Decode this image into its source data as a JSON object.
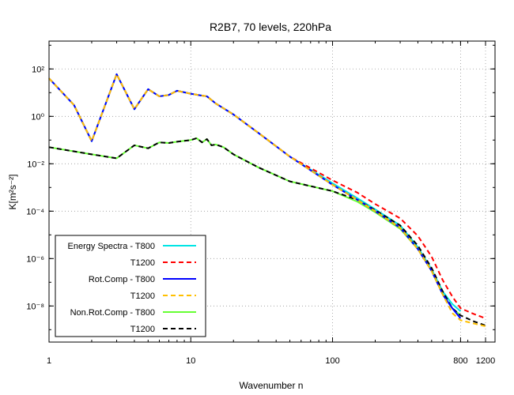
{
  "chart_data": {
    "type": "line",
    "title": "R2B7, 70 levels, 220hPa",
    "xlabel": "Wavenumber n",
    "ylabel": "K[m²s⁻²]",
    "x_scale": "log",
    "y_scale": "log",
    "xlim": [
      1,
      1400
    ],
    "ylim": [
      3e-10,
      1500
    ],
    "x_ticks": [
      1,
      10,
      100,
      800,
      1200
    ],
    "x_tick_labels": [
      "1",
      "10",
      "100",
      "800",
      "1200"
    ],
    "y_ticks": [
      1e-08,
      1e-06,
      0.0001,
      0.01,
      1,
      100
    ],
    "y_tick_labels": [
      "10⁻⁸",
      "10⁻⁶",
      "10⁻⁴",
      "10⁻²",
      "10⁰",
      "10²"
    ],
    "grid": true,
    "legend_position": "bottom-left",
    "series": [
      {
        "name": "Energy Spectra - T800",
        "color": "#00e5e5",
        "dash": "solid",
        "points": [
          [
            1,
            40
          ],
          [
            1.5,
            3
          ],
          [
            2,
            0.09
          ],
          [
            3,
            60
          ],
          [
            4,
            2
          ],
          [
            5,
            14
          ],
          [
            6,
            7
          ],
          [
            7,
            8
          ],
          [
            8,
            12
          ],
          [
            10,
            9
          ],
          [
            12,
            7.5
          ],
          [
            13,
            7
          ],
          [
            15,
            3.5
          ],
          [
            20,
            1.2
          ],
          [
            30,
            0.2
          ],
          [
            50,
            0.02
          ],
          [
            100,
            0.0015
          ],
          [
            150,
            0.00035
          ],
          [
            200,
            0.00012
          ],
          [
            300,
            2.5e-05
          ],
          [
            400,
            3e-06
          ],
          [
            500,
            3.5e-07
          ],
          [
            600,
            4e-08
          ],
          [
            700,
            1.2e-08
          ],
          [
            800,
            6e-09
          ]
        ]
      },
      {
        "name": "T1200",
        "color": "#ff0000",
        "dash": "dashed",
        "points": [
          [
            1,
            40
          ],
          [
            1.5,
            3
          ],
          [
            2,
            0.09
          ],
          [
            3,
            60
          ],
          [
            4,
            2
          ],
          [
            5,
            14
          ],
          [
            6,
            7
          ],
          [
            7,
            8
          ],
          [
            8,
            12
          ],
          [
            10,
            9
          ],
          [
            12,
            7.5
          ],
          [
            13,
            7
          ],
          [
            15,
            3.5
          ],
          [
            20,
            1.2
          ],
          [
            30,
            0.2
          ],
          [
            50,
            0.02
          ],
          [
            100,
            0.002
          ],
          [
            150,
            0.0006
          ],
          [
            200,
            0.0002
          ],
          [
            300,
            5e-05
          ],
          [
            400,
            9e-06
          ],
          [
            500,
            1.2e-06
          ],
          [
            600,
            1.2e-07
          ],
          [
            700,
            2.5e-08
          ],
          [
            800,
            8e-09
          ],
          [
            1000,
            4.5e-09
          ],
          [
            1200,
            3e-09
          ]
        ]
      },
      {
        "name": "Rot.Comp - T800",
        "color": "#0000ff",
        "dash": "solid",
        "points": [
          [
            1,
            40
          ],
          [
            1.5,
            3
          ],
          [
            2,
            0.09
          ],
          [
            3,
            60
          ],
          [
            4,
            2
          ],
          [
            5,
            14
          ],
          [
            6,
            7
          ],
          [
            7,
            8
          ],
          [
            8,
            12
          ],
          [
            10,
            9
          ],
          [
            12,
            7.5
          ],
          [
            13,
            7
          ],
          [
            15,
            3.5
          ],
          [
            20,
            1.2
          ],
          [
            30,
            0.2
          ],
          [
            50,
            0.02
          ],
          [
            100,
            0.0013
          ],
          [
            150,
            0.0003
          ],
          [
            200,
            0.0001
          ],
          [
            300,
            2e-05
          ],
          [
            400,
            2.5e-06
          ],
          [
            500,
            3e-07
          ],
          [
            600,
            3e-08
          ],
          [
            700,
            8e-09
          ],
          [
            800,
            3e-09
          ]
        ]
      },
      {
        "name": "T1200",
        "color": "#ffc000",
        "dash": "dashed",
        "points": [
          [
            1,
            40
          ],
          [
            1.5,
            3
          ],
          [
            2,
            0.09
          ],
          [
            3,
            60
          ],
          [
            4,
            2
          ],
          [
            5,
            14
          ],
          [
            6,
            7
          ],
          [
            7,
            8
          ],
          [
            8,
            12
          ],
          [
            10,
            9
          ],
          [
            12,
            7.5
          ],
          [
            13,
            7
          ],
          [
            15,
            3.5
          ],
          [
            20,
            1.2
          ],
          [
            30,
            0.2
          ],
          [
            50,
            0.02
          ],
          [
            100,
            0.0013
          ],
          [
            150,
            0.0003
          ],
          [
            200,
            0.0001
          ],
          [
            300,
            2e-05
          ],
          [
            400,
            2.5e-06
          ],
          [
            500,
            3e-07
          ],
          [
            600,
            3e-08
          ],
          [
            700,
            5e-09
          ],
          [
            800,
            2.5e-09
          ],
          [
            1000,
            1.8e-09
          ],
          [
            1200,
            1.4e-09
          ]
        ]
      },
      {
        "name": "Non.Rot.Comp - T800",
        "color": "#66ff33",
        "dash": "solid",
        "points": [
          [
            1,
            0.05
          ],
          [
            2,
            0.025
          ],
          [
            3,
            0.017
          ],
          [
            4,
            0.06
          ],
          [
            5,
            0.045
          ],
          [
            6,
            0.08
          ],
          [
            7,
            0.075
          ],
          [
            8,
            0.085
          ],
          [
            10,
            0.1
          ],
          [
            11,
            0.12
          ],
          [
            12,
            0.08
          ],
          [
            13,
            0.11
          ],
          [
            14,
            0.06
          ],
          [
            15,
            0.065
          ],
          [
            17,
            0.05
          ],
          [
            20,
            0.025
          ],
          [
            30,
            0.007
          ],
          [
            50,
            0.0018
          ],
          [
            100,
            0.0007
          ],
          [
            150,
            0.00025
          ],
          [
            200,
            9e-05
          ],
          [
            300,
            1.8e-05
          ],
          [
            400,
            2.5e-06
          ],
          [
            500,
            3e-07
          ],
          [
            600,
            3e-08
          ],
          [
            700,
            8e-09
          ],
          [
            800,
            4e-09
          ]
        ]
      },
      {
        "name": "T1200",
        "color": "#000000",
        "dash": "dashed",
        "points": [
          [
            1,
            0.05
          ],
          [
            2,
            0.025
          ],
          [
            3,
            0.017
          ],
          [
            4,
            0.06
          ],
          [
            5,
            0.045
          ],
          [
            6,
            0.08
          ],
          [
            7,
            0.075
          ],
          [
            8,
            0.085
          ],
          [
            10,
            0.1
          ],
          [
            11,
            0.12
          ],
          [
            12,
            0.08
          ],
          [
            13,
            0.11
          ],
          [
            14,
            0.06
          ],
          [
            15,
            0.065
          ],
          [
            17,
            0.05
          ],
          [
            20,
            0.025
          ],
          [
            30,
            0.007
          ],
          [
            50,
            0.0018
          ],
          [
            100,
            0.0007
          ],
          [
            150,
            0.0003
          ],
          [
            200,
            0.00011
          ],
          [
            300,
            2.5e-05
          ],
          [
            400,
            3.5e-06
          ],
          [
            500,
            4e-07
          ],
          [
            600,
            4e-08
          ],
          [
            700,
            8e-09
          ],
          [
            800,
            4e-09
          ],
          [
            1000,
            2.2e-09
          ],
          [
            1200,
            1.5e-09
          ]
        ]
      }
    ]
  }
}
